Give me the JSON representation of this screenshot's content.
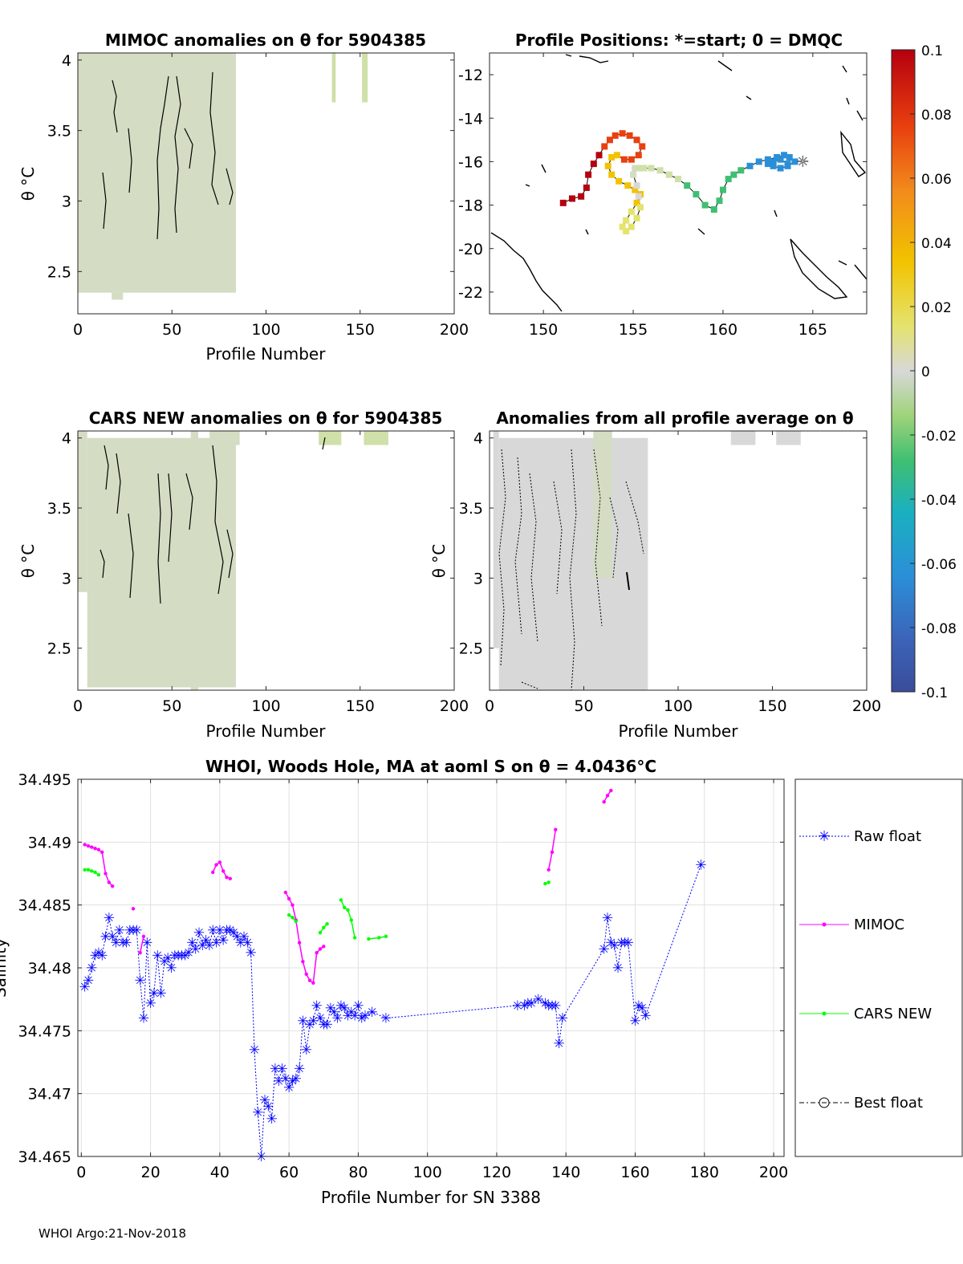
{
  "figure": {
    "footer": "WHOI Argo:21-Nov-2018"
  },
  "chart_data": [
    {
      "id": "mimoc",
      "type": "heatmap",
      "title": "MIMOC anomalies on θ  for 5904385",
      "xlabel": "Profile Number",
      "ylabel": "θ °C",
      "xlim": [
        0,
        200
      ],
      "ylim": [
        2.2,
        4.05
      ],
      "xticks": [
        0,
        50,
        100,
        150,
        200
      ],
      "yticks": [
        2.5,
        3,
        3.5,
        4
      ],
      "ytick_labels": [
        "2.5",
        "3",
        "3.5",
        "4"
      ],
      "fill_regions": [
        {
          "x": [
            0,
            84
          ],
          "y": [
            2.35,
            4.05
          ],
          "value": -0.008
        },
        {
          "x": [
            18,
            24
          ],
          "y": [
            2.3,
            2.35
          ],
          "value": -0.008
        },
        {
          "x": [
            135,
            137
          ],
          "y": [
            3.7,
            4.05
          ],
          "value": -0.012
        },
        {
          "x": [
            151,
            154
          ],
          "y": [
            3.7,
            4.05
          ],
          "value": -0.012
        }
      ]
    },
    {
      "id": "positions",
      "type": "scatter",
      "title": "Profile Positions: *=start; 0 = DMQC",
      "xlim": [
        147,
        168
      ],
      "ylim": [
        -23,
        -11
      ],
      "xticks": [
        150,
        155,
        160,
        165
      ],
      "yticks": [
        -12,
        -14,
        -16,
        -18,
        -20,
        -22
      ],
      "ytick_labels": [
        "-12",
        "-14",
        "-16",
        "-18",
        "-20",
        "-22"
      ],
      "track_lon": [
        151.1,
        151.6,
        152.1,
        152.4,
        152.5,
        152.8,
        153.1,
        153.4,
        153.7,
        154.0,
        154.4,
        154.8,
        155.2,
        155.5,
        155.3,
        154.9,
        154.5,
        154.1,
        153.8,
        153.6,
        153.8,
        154.2,
        154.7,
        155.1,
        155.4,
        155.2,
        154.9,
        154.6,
        154.4,
        154.6,
        154.9,
        155.2,
        155.4,
        155.3,
        155.2,
        155.0,
        155.1,
        155.3,
        155.6,
        156.0,
        156.5,
        157.0,
        157.5,
        158.0,
        158.5,
        159.0,
        159.5,
        159.8,
        160.0,
        160.3,
        160.6,
        161.0,
        161.5,
        162.0,
        162.5,
        163.0,
        163.4,
        163.7,
        164.0,
        163.6,
        163.2,
        162.8,
        162.5,
        162.8,
        163.2,
        163.6
      ],
      "track_lat": [
        -17.9,
        -17.7,
        -17.6,
        -17.2,
        -16.6,
        -16.1,
        -15.7,
        -15.3,
        -15.0,
        -14.8,
        -14.7,
        -14.8,
        -15.0,
        -15.3,
        -15.7,
        -15.9,
        -15.9,
        -15.7,
        -15.8,
        -16.2,
        -16.6,
        -16.9,
        -17.1,
        -17.3,
        -17.5,
        -17.9,
        -18.3,
        -18.7,
        -19.0,
        -19.2,
        -19.0,
        -18.6,
        -18.1,
        -17.6,
        -17.1,
        -16.6,
        -16.3,
        -16.3,
        -16.3,
        -16.3,
        -16.4,
        -16.6,
        -16.8,
        -17.1,
        -17.5,
        -18.0,
        -18.2,
        -17.8,
        -17.3,
        -16.8,
        -16.6,
        -16.4,
        -16.2,
        -16.0,
        -15.9,
        -15.8,
        -15.7,
        -15.8,
        -16.0,
        -16.2,
        -16.3,
        -16.2,
        -16.1,
        -16.0,
        -15.9,
        -16.1
      ],
      "colorbar": {
        "min": -0.1,
        "max": 0.1,
        "tick_values": [
          0.1,
          0.08,
          0.06,
          0.04,
          0.02,
          0,
          -0.02,
          -0.04,
          -0.06,
          -0.08,
          -0.1
        ],
        "tick_labels": [
          "0.1",
          "0.08",
          "0.06",
          "0.04",
          "0.02",
          "0",
          "-0.02",
          "-0.04",
          "-0.06",
          "-0.08",
          "-0.1"
        ]
      }
    },
    {
      "id": "cars",
      "type": "heatmap",
      "title": "CARS NEW anomalies on θ for 5904385",
      "xlabel": "Profile Number",
      "ylabel": "θ °C",
      "xlim": [
        0,
        200
      ],
      "ylim": [
        2.2,
        4.05
      ],
      "xticks": [
        0,
        50,
        100,
        150,
        200
      ],
      "yticks": [
        2.5,
        3,
        3.5,
        4
      ],
      "ytick_labels": [
        "2.5",
        "3",
        "3.5",
        "4"
      ],
      "fill_regions": [
        {
          "x": [
            5,
            84
          ],
          "y": [
            2.22,
            4.0
          ],
          "value": -0.006
        },
        {
          "x": [
            0,
            5
          ],
          "y": [
            2.9,
            4.05
          ],
          "value": -0.006
        },
        {
          "x": [
            60,
            64
          ],
          "y": [
            2.2,
            4.05
          ],
          "value": -0.008
        },
        {
          "x": [
            70,
            86
          ],
          "y": [
            3.95,
            4.05
          ],
          "value": -0.01
        },
        {
          "x": [
            128,
            140
          ],
          "y": [
            3.95,
            4.05
          ],
          "value": -0.012
        },
        {
          "x": [
            152,
            165
          ],
          "y": [
            3.95,
            4.05
          ],
          "value": -0.012
        }
      ]
    },
    {
      "id": "allprofile",
      "type": "heatmap",
      "title": "Anomalies from all profile average on θ",
      "xlabel": "Profile Number",
      "ylabel": "θ °C",
      "xlim": [
        0,
        200
      ],
      "ylim": [
        2.2,
        4.05
      ],
      "xticks": [
        0,
        50,
        100,
        150,
        200
      ],
      "yticks": [
        2.5,
        3,
        3.5,
        4
      ],
      "ytick_labels": [
        "2.5",
        "3",
        "3.5",
        "4"
      ],
      "fill_regions": [
        {
          "x": [
            5,
            84
          ],
          "y": [
            2.2,
            4.0
          ],
          "value": 0.0
        },
        {
          "x": [
            2,
            5
          ],
          "y": [
            2.5,
            4.05
          ],
          "value": 0.0
        },
        {
          "x": [
            55,
            65
          ],
          "y": [
            3.0,
            4.05
          ],
          "value": -0.01
        },
        {
          "x": [
            128,
            141
          ],
          "y": [
            3.95,
            4.05
          ],
          "value": 0.0
        },
        {
          "x": [
            152,
            165
          ],
          "y": [
            3.95,
            4.05
          ],
          "value": 0.0
        }
      ]
    },
    {
      "id": "salinity",
      "type": "line",
      "title": "WHOI, Woods Hole, MA at aoml S on θ = 4.0436°C",
      "xlabel": "Profile Number for SN 3388",
      "ylabel": "Salinity",
      "xlim": [
        -1,
        203
      ],
      "ylim": [
        34.465,
        34.495
      ],
      "xticks": [
        0,
        20,
        40,
        60,
        80,
        100,
        120,
        140,
        160,
        180,
        200
      ],
      "yticks": [
        34.465,
        34.47,
        34.475,
        34.48,
        34.485,
        34.49,
        34.495
      ],
      "ytick_labels": [
        "34.465",
        "34.47",
        "34.475",
        "34.48",
        "34.485",
        "34.49",
        "34.495"
      ],
      "legend": [
        "Raw float",
        "MIMOC",
        "CARS NEW",
        "Best float"
      ],
      "series": [
        {
          "name": "Raw float",
          "color": "#0000ff",
          "x": [
            1,
            2,
            3,
            4,
            5,
            6,
            7,
            8,
            9,
            10,
            11,
            12,
            13,
            14,
            15,
            16,
            17,
            18,
            19,
            20,
            21,
            22,
            23,
            24,
            25,
            26,
            27,
            28,
            29,
            30,
            31,
            32,
            33,
            34,
            35,
            36,
            37,
            38,
            39,
            40,
            41,
            42,
            43,
            44,
            45,
            46,
            47,
            48,
            49,
            50,
            51,
            52,
            53,
            54,
            55,
            56,
            57,
            58,
            59,
            60,
            61,
            62,
            63,
            64,
            65,
            66,
            67,
            68,
            69,
            70,
            71,
            72,
            73,
            74,
            75,
            76,
            77,
            78,
            79,
            80,
            81,
            82,
            84,
            88,
            126,
            128,
            129,
            130,
            132,
            134,
            135,
            136,
            137,
            138,
            139,
            151,
            152,
            153,
            154,
            155,
            156,
            157,
            158,
            160,
            161,
            162,
            163,
            179
          ],
          "y": [
            34.4785,
            34.479,
            34.48,
            34.481,
            34.4812,
            34.481,
            34.4825,
            34.484,
            34.4825,
            34.482,
            34.483,
            34.482,
            34.482,
            34.483,
            34.483,
            34.483,
            34.479,
            34.476,
            34.482,
            34.4772,
            34.478,
            34.481,
            34.478,
            34.4805,
            34.4808,
            34.48,
            34.481,
            34.481,
            34.481,
            34.481,
            34.4812,
            34.482,
            34.4815,
            34.4828,
            34.4818,
            34.4822,
            34.4818,
            34.483,
            34.482,
            34.483,
            34.4822,
            34.483,
            34.483,
            34.4828,
            34.4825,
            34.482,
            34.4825,
            34.482,
            34.4812,
            34.4735,
            34.4685,
            34.465,
            34.4695,
            34.469,
            34.468,
            34.472,
            34.471,
            34.472,
            34.4712,
            34.4705,
            34.471,
            34.4712,
            34.472,
            34.4758,
            34.4735,
            34.4755,
            34.4758,
            34.477,
            34.476,
            34.4755,
            34.4755,
            34.4768,
            34.4765,
            34.476,
            34.477,
            34.4768,
            34.4762,
            34.4765,
            34.4762,
            34.477,
            34.476,
            34.4762,
            34.4765,
            34.476,
            34.477,
            34.477,
            34.4772,
            34.4772,
            34.4775,
            34.4772,
            34.477,
            34.477,
            34.477,
            34.474,
            34.476,
            34.4815,
            34.484,
            34.482,
            34.4818,
            34.48,
            34.482,
            34.482,
            34.482,
            34.4758,
            34.477,
            34.4768,
            34.4762,
            34.4882
          ]
        },
        {
          "name": "MIMOC",
          "color": "#ff00ff",
          "segments": [
            {
              "x": [
                1,
                2,
                3,
                4,
                5,
                6,
                7,
                8,
                9
              ],
              "y": [
                34.4898,
                34.4897,
                34.4896,
                34.4895,
                34.4894,
                34.4892,
                34.4875,
                34.4868,
                34.4865
              ]
            },
            {
              "x": [
                15
              ],
              "y": [
                34.4847
              ]
            },
            {
              "x": [
                17,
                18
              ],
              "y": [
                34.4812,
                34.4825
              ]
            },
            {
              "x": [
                38,
                39,
                40,
                41,
                42,
                43
              ],
              "y": [
                34.4876,
                34.4882,
                34.4884,
                34.4877,
                34.4872,
                34.4871
              ]
            },
            {
              "x": [
                59,
                60,
                61,
                62,
                63,
                64,
                65,
                66,
                67,
                68,
                69,
                70
              ],
              "y": [
                34.486,
                34.4855,
                34.485,
                34.4838,
                34.482,
                34.4805,
                34.4795,
                34.479,
                34.4788,
                34.4812,
                34.4815,
                34.4817
              ]
            },
            {
              "x": [
                135,
                136,
                137
              ],
              "y": [
                34.4878,
                34.4892,
                34.491
              ]
            },
            {
              "x": [
                151,
                152,
                153
              ],
              "y": [
                34.4932,
                34.4937,
                34.4941
              ]
            }
          ]
        },
        {
          "name": "CARS NEW",
          "color": "#00ff00",
          "segments": [
            {
              "x": [
                1,
                2,
                3,
                4,
                5
              ],
              "y": [
                34.4878,
                34.4878,
                34.4877,
                34.4876,
                34.4874
              ]
            },
            {
              "x": [
                60,
                61,
                62
              ],
              "y": [
                34.4842,
                34.484,
                34.4837
              ]
            },
            {
              "x": [
                69,
                70,
                71
              ],
              "y": [
                34.4828,
                34.4832,
                34.4835
              ]
            },
            {
              "x": [
                75,
                76,
                77,
                78,
                79
              ],
              "y": [
                34.4854,
                34.4848,
                34.4846,
                34.4838,
                34.4824
              ]
            },
            {
              "x": [
                83,
                86,
                88
              ],
              "y": [
                34.4823,
                34.4824,
                34.4825
              ]
            },
            {
              "x": [
                134,
                135
              ],
              "y": [
                34.4867,
                34.4868
              ]
            }
          ]
        },
        {
          "name": "Best float",
          "color": "#000000",
          "x": [],
          "y": []
        }
      ]
    }
  ]
}
